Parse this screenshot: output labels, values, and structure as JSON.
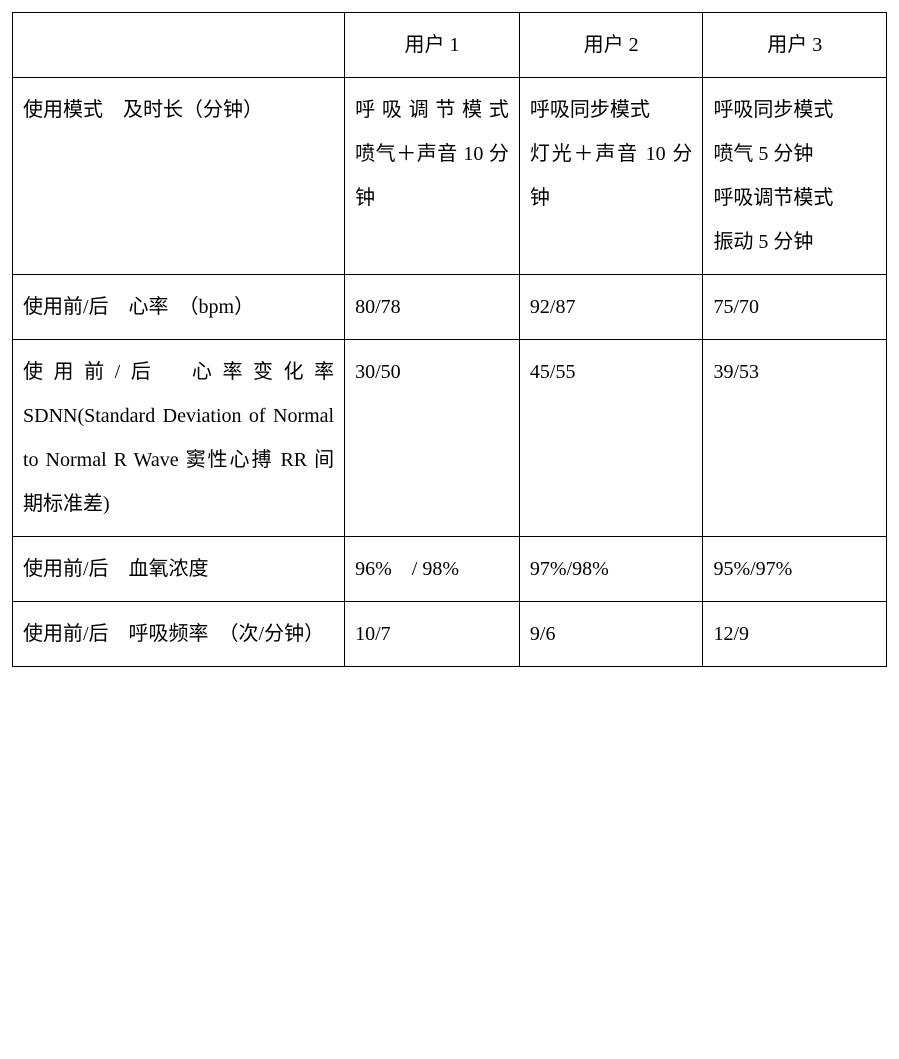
{
  "table": {
    "border_color": "#000000",
    "background_color": "#ffffff",
    "font_family": "SimSun",
    "font_size_pt": 15,
    "line_height": 2.2,
    "column_widths_pct": [
      38,
      20,
      21,
      21
    ],
    "header": {
      "blank": "",
      "user1": "用户 1",
      "user2": "用户 2",
      "user3": "用户 3"
    },
    "rows": {
      "mode": {
        "label": "使用模式　及时长（分钟）",
        "user1": "呼吸调节模式　喷气＋声音 10 分钟",
        "user2": "呼吸同步模式\n灯光＋声音 10 分钟",
        "user3": "呼吸同步模式\n喷气 5 分钟\n呼吸调节模式\n振动 5 分钟"
      },
      "hr": {
        "label": "使用前/后　心率　（bpm）",
        "user1": "80/78",
        "user2": "92/87",
        "user3": "75/70"
      },
      "sdnn": {
        "label": "使用前/后　心率变化率 SDNN(Standard  Deviation of Normal to Normal R Wave 窦性心搏 RR 间期标准差)",
        "user1": "30/50",
        "user2": "45/55",
        "user3": "39/53"
      },
      "spo2": {
        "label": "使用前/后　血氧浓度",
        "user1": "96%　/ 98%",
        "user2": "97%/98%",
        "user3": "95%/97%"
      },
      "resp": {
        "label": "使用前/后　呼吸频率　（次/分钟）",
        "user1": "10/7",
        "user2": "9/6",
        "user3": "12/9"
      }
    }
  }
}
